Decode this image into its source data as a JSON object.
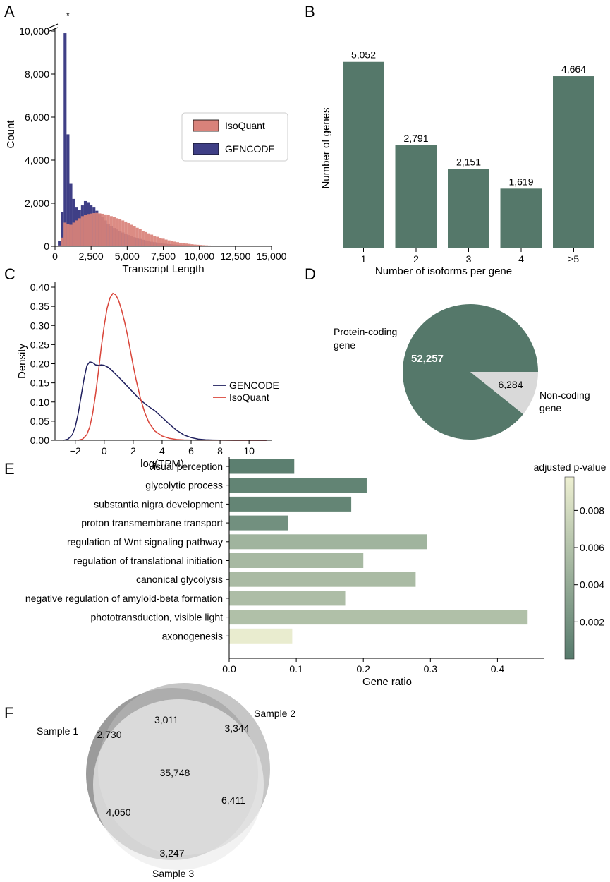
{
  "colors": {
    "isoquant": "#d9827a",
    "gencode": "#3f3f86",
    "bar": "#55786a",
    "pie_main": "#55786a",
    "pie_other": "#d9d9d9",
    "kde_gencode": "#1f1f5e",
    "kde_isoquant": "#d9453a",
    "venn1": "#8a8a8a",
    "venn2": "#b3b3b3",
    "venn3": "#ececec",
    "cb_low": "#567a6c",
    "cb_high": "#eef0d2"
  },
  "chart_data": [
    {
      "panel": "A",
      "type": "bar",
      "xlabel": "Transcript Length",
      "ylabel": "Count",
      "xlim": [
        0,
        15000
      ],
      "ylim": [
        0,
        10000
      ],
      "xticks": [
        "0",
        "2,500",
        "5,000",
        "7,500",
        "10,000",
        "12,500",
        "15,000"
      ],
      "yticks": [
        "0",
        "2,000",
        "4,000",
        "6,000",
        "8,000",
        "10,000"
      ],
      "axis_break_marker": "*",
      "legend": [
        "IsoQuant",
        "GENCODE"
      ],
      "bin_width": 200,
      "series": [
        {
          "name": "GENCODE",
          "values": [
            0,
            250,
            1600,
            9900,
            5200,
            2900,
            2200,
            1800,
            1700,
            1900,
            2100,
            2050,
            1900,
            1800,
            1650,
            1500,
            1350,
            1200,
            1050,
            950,
            850,
            780,
            700,
            640,
            580,
            520,
            470,
            420,
            380,
            340,
            300,
            270,
            240,
            210,
            190,
            170,
            150,
            130,
            115,
            100,
            90,
            80,
            70,
            60,
            55,
            50,
            45,
            40,
            35,
            30,
            28,
            25,
            22,
            20,
            18,
            15,
            12,
            10,
            8,
            6,
            5,
            4,
            3,
            2,
            2,
            1,
            1,
            1,
            1,
            1,
            0,
            0,
            0,
            0,
            0
          ]
        },
        {
          "name": "IsoQuant",
          "values": [
            0,
            40,
            400,
            1100,
            1050,
            1000,
            1100,
            1200,
            1300,
            1400,
            1450,
            1500,
            1520,
            1540,
            1550,
            1530,
            1510,
            1480,
            1450,
            1400,
            1350,
            1300,
            1250,
            1200,
            1150,
            1080,
            1000,
            930,
            860,
            790,
            720,
            660,
            600,
            540,
            490,
            440,
            390,
            350,
            310,
            275,
            245,
            215,
            190,
            165,
            145,
            125,
            110,
            95,
            80,
            70,
            60,
            50,
            42,
            35,
            30,
            25,
            20,
            16,
            12,
            9,
            7,
            5,
            4,
            3,
            2,
            2,
            1,
            1,
            1,
            1,
            0,
            0,
            0,
            0,
            0
          ]
        }
      ]
    },
    {
      "panel": "B",
      "type": "bar",
      "xlabel": "Number of isoforms per gene",
      "ylabel": "Number of genes",
      "categories": [
        "1",
        "2",
        "3",
        "4",
        "≥5"
      ],
      "values": [
        5052,
        2791,
        2151,
        1619,
        4664
      ],
      "value_labels": [
        "5,052",
        "2,791",
        "2,151",
        "1,619",
        "4,664"
      ],
      "ylim": [
        0,
        5200
      ]
    },
    {
      "panel": "C",
      "type": "line",
      "xlabel": "log(TPM)",
      "ylabel": "Density",
      "xlim": [
        -3.4,
        11.6
      ],
      "ylim": [
        0,
        0.4
      ],
      "xticks": [
        "−2",
        "0",
        "2",
        "4",
        "6",
        "8",
        "10"
      ],
      "yticks": [
        "0.00",
        "0.05",
        "0.10",
        "0.15",
        "0.20",
        "0.25",
        "0.30",
        "0.35",
        "0.40"
      ],
      "legend": [
        "GENCODE",
        "IsoQuant"
      ],
      "series": [
        {
          "name": "GENCODE",
          "x": [
            -2.8,
            -2.5,
            -2.2,
            -2.0,
            -1.8,
            -1.6,
            -1.4,
            -1.2,
            -1.0,
            -0.8,
            -0.6,
            -0.4,
            -0.2,
            0,
            0.3,
            0.6,
            1.0,
            1.5,
            2.0,
            2.5,
            3.0,
            3.5,
            4.0,
            4.5,
            5.0,
            5.5,
            6.0,
            6.5,
            7.0,
            7.5,
            8.0,
            9.0,
            10.0,
            11.2
          ],
          "values": [
            0,
            0.003,
            0.015,
            0.035,
            0.07,
            0.115,
            0.16,
            0.195,
            0.205,
            0.203,
            0.197,
            0.196,
            0.197,
            0.196,
            0.19,
            0.18,
            0.165,
            0.145,
            0.125,
            0.105,
            0.09,
            0.077,
            0.06,
            0.042,
            0.026,
            0.014,
            0.007,
            0.003,
            0.0015,
            0.0008,
            0.0004,
            0.0002,
            0.0001,
            0
          ]
        },
        {
          "name": "IsoQuant",
          "x": [
            -1.8,
            -1.5,
            -1.2,
            -1.0,
            -0.8,
            -0.6,
            -0.4,
            -0.2,
            0,
            0.2,
            0.4,
            0.6,
            0.8,
            1.0,
            1.2,
            1.4,
            1.6,
            1.8,
            2.0,
            2.2,
            2.5,
            2.8,
            3.1,
            3.5,
            4.0,
            4.5,
            5.0,
            5.5,
            6.0,
            7.0,
            8.0,
            9.0,
            10.0,
            11.2
          ],
          "values": [
            0,
            0.003,
            0.015,
            0.035,
            0.07,
            0.12,
            0.18,
            0.245,
            0.3,
            0.345,
            0.372,
            0.384,
            0.38,
            0.365,
            0.34,
            0.31,
            0.275,
            0.235,
            0.195,
            0.158,
            0.11,
            0.072,
            0.045,
            0.024,
            0.011,
            0.005,
            0.002,
            0.0009,
            0.0004,
            0.0002,
            0.0001,
            0,
            0,
            0
          ]
        }
      ]
    },
    {
      "panel": "D",
      "type": "pie",
      "labels": [
        "Protein-coding gene",
        "Non-coding gene"
      ],
      "label_lines": [
        [
          "Protein-coding",
          "gene"
        ],
        [
          "Non-coding",
          "gene"
        ]
      ],
      "values": [
        52257,
        6284
      ],
      "value_labels": [
        "52,257",
        "6,284"
      ]
    },
    {
      "panel": "E",
      "type": "bar",
      "orientation": "horizontal",
      "xlabel": "Gene ratio",
      "xlim": [
        0,
        0.47
      ],
      "xticks": [
        "0.0",
        "0.1",
        "0.2",
        "0.3",
        "0.4"
      ],
      "categories": [
        "visual perception",
        "glycolytic process",
        "substantia nigra development",
        "proton transmembrane transport",
        "regulation of Wnt signaling pathway",
        "regulation of translational initiation",
        "canonical glycolysis",
        "negative regulation of amyloid-beta formation",
        "phototransduction, visible light",
        "axonogenesis"
      ],
      "values": [
        0.097,
        0.205,
        0.182,
        0.088,
        0.295,
        0.2,
        0.278,
        0.173,
        0.445,
        0.094
      ],
      "adjusted_p": [
        0.0004,
        0.0008,
        0.0009,
        0.0018,
        0.0048,
        0.0052,
        0.0054,
        0.0056,
        0.0058,
        0.0095
      ],
      "colorbar_title": "adjusted p-value",
      "colorbar_ticks": [
        "0.008",
        "0.006",
        "0.004",
        "0.002"
      ],
      "colorbar_range": [
        0.0,
        0.0098
      ]
    },
    {
      "panel": "F",
      "type": "venn",
      "sets": [
        "Sample 1",
        "Sample 2",
        "Sample 3"
      ],
      "region_labels": [
        "3,011",
        "2,730",
        "3,344",
        "35,748",
        "4,050",
        "6,411",
        "3,247"
      ]
    }
  ]
}
